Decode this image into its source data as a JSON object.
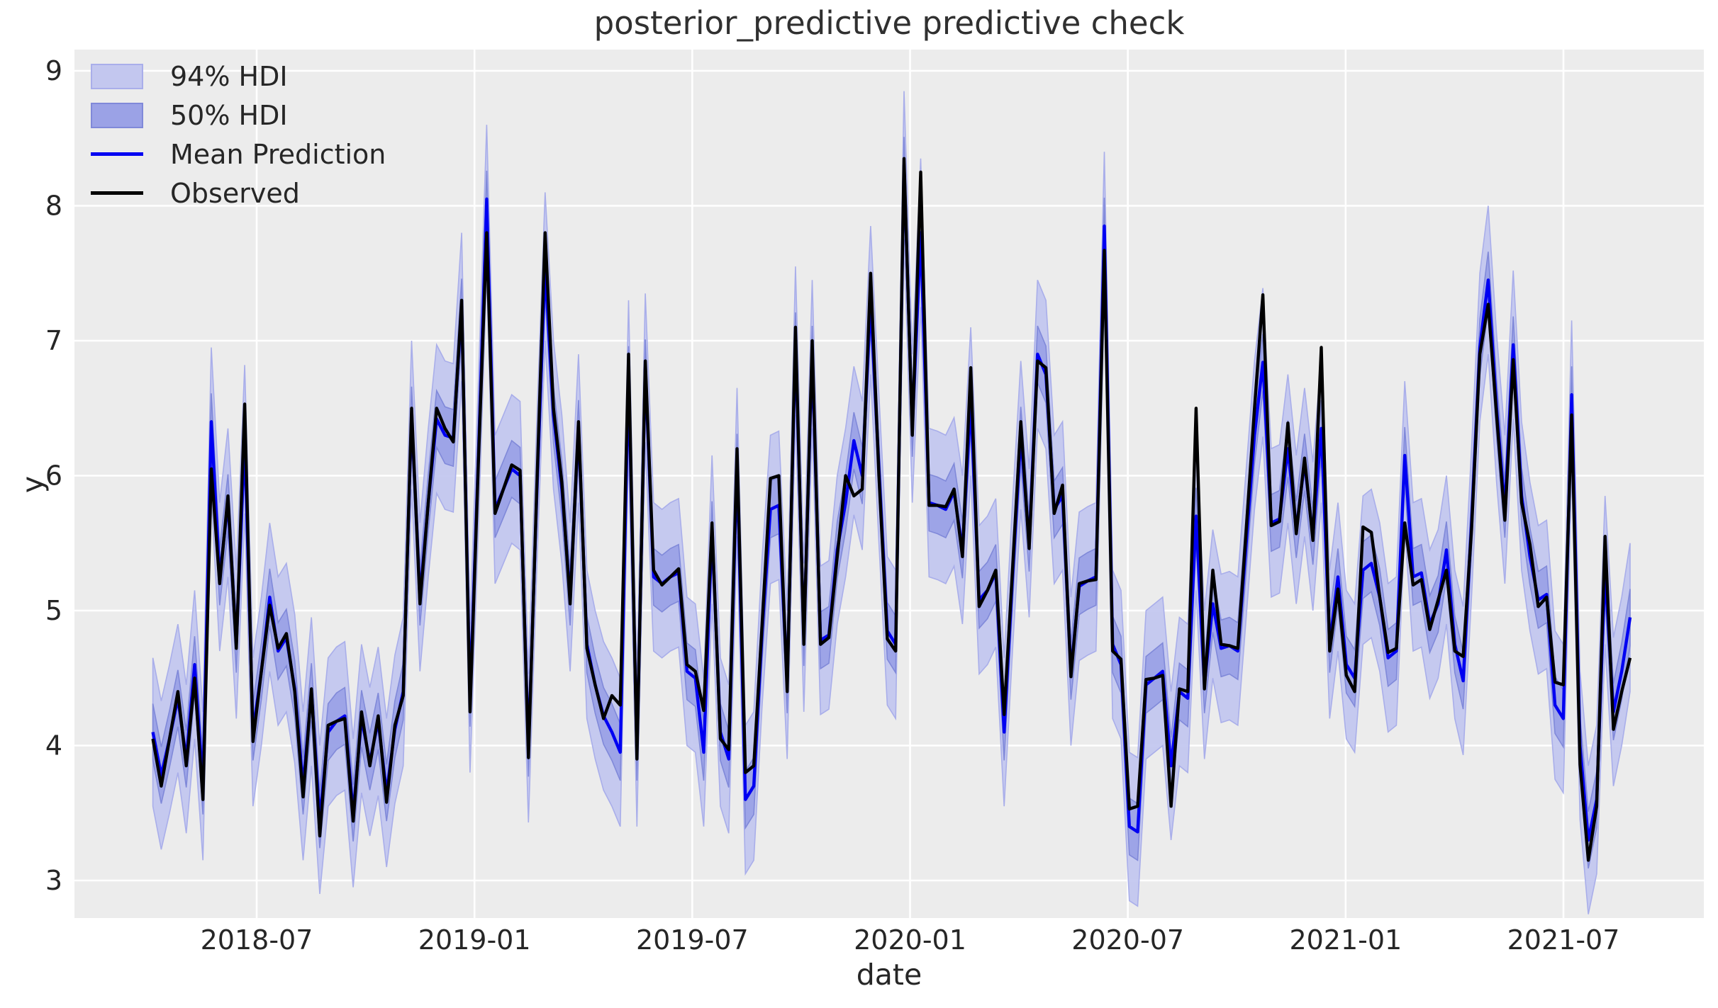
{
  "title": "posterior_predictive predictive check",
  "colors": {
    "plot_background": "#ececec",
    "gridline": "#ffffff",
    "hdi94_fill": "#c3c7ef",
    "hdi94_edge": "#a9aeea",
    "hdi50_fill": "#9ba2e6",
    "hdi50_edge": "#8089d9",
    "mean_line": "#0000f2",
    "observed_line": "#000000",
    "text": "#262626"
  },
  "chart_data": {
    "type": "line",
    "title": "posterior_predictive predictive check",
    "xlabel": "date",
    "ylabel": "y",
    "grid": true,
    "legend_position": "upper left",
    "x_tick_labels": [
      "2018-07",
      "2019-01",
      "2019-07",
      "2020-01",
      "2020-07",
      "2021-01",
      "2021-07"
    ],
    "y_ticks": [
      3,
      4,
      5,
      6,
      7,
      8,
      9
    ],
    "ylim": [
      2.73,
      9.16
    ],
    "x_start_date": "2018-04-05",
    "x_step_days": 7,
    "x_end_date": "2021-08-26",
    "n_points": 178,
    "legend": [
      {
        "label": "94% HDI",
        "type": "patch"
      },
      {
        "label": "50% HDI",
        "type": "patch"
      },
      {
        "label": "Mean Prediction",
        "type": "line"
      },
      {
        "label": "Observed",
        "type": "line"
      }
    ],
    "bands": [
      {
        "name": "94% HDI",
        "around": "mean",
        "halfwidth": 0.55
      },
      {
        "name": "50% HDI",
        "around": "mean",
        "halfwidth": 0.21
      }
    ],
    "series": [
      {
        "name": "Observed",
        "values": [
          4.05,
          3.7,
          4.05,
          4.4,
          3.85,
          4.5,
          3.6,
          6.05,
          5.2,
          5.85,
          4.72,
          6.53,
          4.03,
          4.55,
          5.04,
          4.72,
          4.83,
          4.4,
          3.62,
          4.42,
          3.33,
          4.15,
          4.18,
          4.2,
          3.44,
          4.25,
          3.85,
          4.22,
          3.58,
          4.15,
          4.37,
          6.5,
          5.05,
          5.8,
          6.5,
          6.35,
          6.25,
          7.3,
          4.25,
          6.1,
          7.8,
          5.72,
          5.9,
          6.08,
          6.04,
          3.91,
          5.9,
          7.8,
          6.5,
          5.95,
          5.05,
          6.4,
          4.72,
          4.45,
          4.2,
          4.37,
          4.3,
          6.9,
          3.9,
          6.85,
          5.3,
          5.19,
          5.25,
          5.31,
          4.6,
          4.55,
          4.26,
          5.65,
          4.05,
          3.97,
          6.2,
          3.8,
          3.85,
          4.9,
          5.98,
          6.0,
          4.4,
          7.1,
          4.75,
          7.0,
          4.75,
          4.8,
          5.4,
          6.0,
          5.85,
          5.9,
          7.5,
          6.0,
          4.79,
          4.7,
          8.35,
          6.3,
          8.25,
          5.78,
          5.78,
          5.77,
          5.9,
          5.4,
          6.8,
          5.03,
          5.15,
          5.3,
          4.23,
          5.3,
          6.4,
          5.46,
          6.85,
          6.8,
          5.72,
          5.93,
          4.51,
          5.2,
          5.22,
          5.23,
          7.67,
          4.7,
          4.64,
          3.53,
          3.55,
          4.49,
          4.5,
          4.52,
          3.55,
          4.42,
          4.4,
          6.5,
          4.42,
          5.3,
          4.75,
          4.74,
          4.72,
          5.6,
          6.5,
          7.34,
          5.63,
          5.66,
          6.39,
          5.57,
          6.13,
          5.52,
          6.95,
          4.7,
          5.16,
          4.52,
          4.4,
          5.62,
          5.58,
          5.1,
          4.69,
          4.72,
          5.65,
          5.19,
          5.23,
          4.86,
          5.08,
          5.3,
          4.7,
          4.66,
          5.6,
          6.9,
          7.27,
          6.45,
          5.67,
          6.86,
          5.8,
          5.49,
          5.03,
          5.1,
          4.47,
          4.45,
          6.45,
          3.86,
          3.15,
          3.55,
          5.55,
          4.12,
          4.4,
          4.65
        ]
      },
      {
        "name": "Mean Prediction",
        "values": [
          4.1,
          3.78,
          4.05,
          4.35,
          3.9,
          4.6,
          3.7,
          6.4,
          5.25,
          5.8,
          4.75,
          6.27,
          4.1,
          4.55,
          5.1,
          4.7,
          4.8,
          4.42,
          3.7,
          4.4,
          3.45,
          4.1,
          4.18,
          4.22,
          3.5,
          4.2,
          3.88,
          4.18,
          3.65,
          4.12,
          4.4,
          6.45,
          5.1,
          5.8,
          6.42,
          6.3,
          6.28,
          7.25,
          4.35,
          6.15,
          8.05,
          5.75,
          5.9,
          6.05,
          6.0,
          3.98,
          5.85,
          7.55,
          6.45,
          5.9,
          5.1,
          6.35,
          4.75,
          4.45,
          4.22,
          4.1,
          3.95,
          6.75,
          3.95,
          6.8,
          5.25,
          5.2,
          5.25,
          5.28,
          4.55,
          4.5,
          3.95,
          5.6,
          4.1,
          3.9,
          6.1,
          3.6,
          3.7,
          4.85,
          5.75,
          5.78,
          4.45,
          7.0,
          4.8,
          6.9,
          4.78,
          4.82,
          5.45,
          5.8,
          6.26,
          6.0,
          7.3,
          6.05,
          4.85,
          4.75,
          8.3,
          6.35,
          7.8,
          5.8,
          5.78,
          5.75,
          5.88,
          5.45,
          6.55,
          5.08,
          5.15,
          5.28,
          4.1,
          5.25,
          6.3,
          5.5,
          6.9,
          6.75,
          5.75,
          5.85,
          4.55,
          5.18,
          5.22,
          5.25,
          7.85,
          4.75,
          4.6,
          3.4,
          3.36,
          4.45,
          4.5,
          4.55,
          3.85,
          4.4,
          4.35,
          5.7,
          4.45,
          5.05,
          4.72,
          4.74,
          4.7,
          5.5,
          6.3,
          6.84,
          5.65,
          5.68,
          6.2,
          5.6,
          6.1,
          5.55,
          6.35,
          4.75,
          5.25,
          4.6,
          4.5,
          5.3,
          5.35,
          5.1,
          4.65,
          4.7,
          6.15,
          5.25,
          5.28,
          4.9,
          5.05,
          5.45,
          4.75,
          4.48,
          5.65,
          6.95,
          7.45,
          6.5,
          5.75,
          6.97,
          5.85,
          5.4,
          5.08,
          5.12,
          4.3,
          4.2,
          6.6,
          4.0,
          3.3,
          3.6,
          5.3,
          4.25,
          4.55,
          4.95
        ]
      }
    ]
  }
}
